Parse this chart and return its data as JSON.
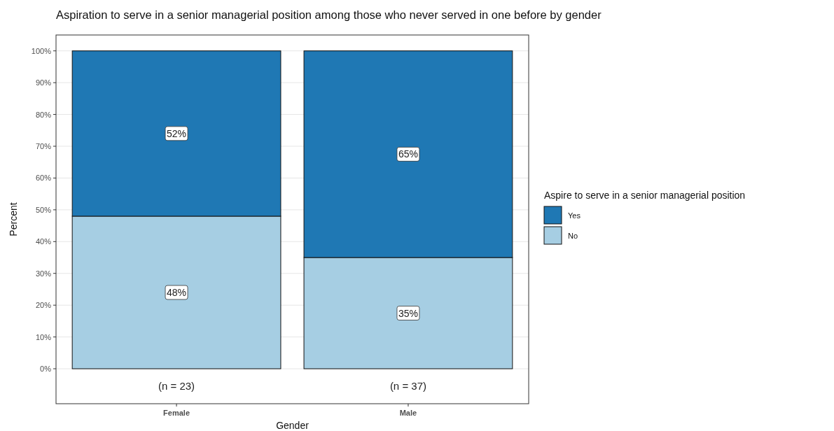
{
  "chart_data": {
    "type": "bar",
    "title": "Aspiration to serve in a senior managerial position among those who never served in one before by gender",
    "xlabel": "Gender",
    "ylabel": "Percent",
    "legend_title": "Aspire to serve in a senior managerial position",
    "categories": [
      "Female",
      "Male"
    ],
    "stacked": true,
    "series": [
      {
        "name": "No",
        "color": "#a6cee3",
        "values": [
          48,
          35
        ],
        "value_labels": [
          "48%",
          "35%"
        ]
      },
      {
        "name": "Yes",
        "color": "#1f78b4",
        "values": [
          52,
          65
        ],
        "value_labels": [
          "52%",
          "65%"
        ]
      }
    ],
    "ylim": [
      -11,
      105
    ],
    "yticks": [
      {
        "value": 0,
        "label": "0%"
      },
      {
        "value": 10,
        "label": "10%"
      },
      {
        "value": 20,
        "label": "20%"
      },
      {
        "value": 30,
        "label": "30%"
      },
      {
        "value": 40,
        "label": "40%"
      },
      {
        "value": 50,
        "label": "50%"
      },
      {
        "value": 60,
        "label": "60%"
      },
      {
        "value": 70,
        "label": "70%"
      },
      {
        "value": 80,
        "label": "80%"
      },
      {
        "value": 90,
        "label": "90%"
      },
      {
        "value": 100,
        "label": "100%"
      }
    ],
    "grid": true,
    "legend": "right",
    "annotations": [
      "(n = 23)",
      "(n = 37)"
    ]
  }
}
